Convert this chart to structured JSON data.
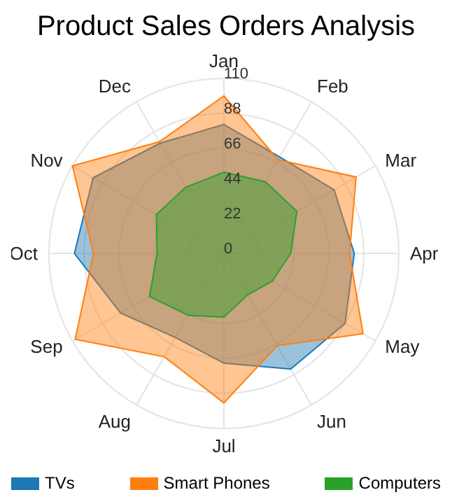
{
  "chart_data": {
    "type": "radar",
    "title": "Product Sales Orders Analysis",
    "categories": [
      "Jan",
      "Feb",
      "Mar",
      "Apr",
      "May",
      "Jun",
      "Jul",
      "Aug",
      "Sep",
      "Oct",
      "Nov",
      "Dec"
    ],
    "series": [
      {
        "name": "TVs",
        "color": "#1f77b4",
        "values": [
          81,
          70,
          80,
          82,
          88,
          84,
          69,
          61,
          75,
          94,
          95,
          80
        ]
      },
      {
        "name": "Smart Phones",
        "color": "#ff7f0e",
        "values": [
          99,
          68,
          96,
          79,
          101,
          67,
          94,
          75,
          108,
          82,
          110,
          81
        ]
      },
      {
        "name": "Computers",
        "color": "#2ca02c",
        "values": [
          51,
          52,
          53,
          42,
          35,
          30,
          40,
          45,
          54,
          42,
          49,
          48
        ]
      }
    ],
    "ylim": [
      0,
      110
    ],
    "yticks": [
      0,
      22,
      44,
      66,
      88,
      110
    ],
    "grid": true,
    "legend": "bottom",
    "marker": "none"
  }
}
